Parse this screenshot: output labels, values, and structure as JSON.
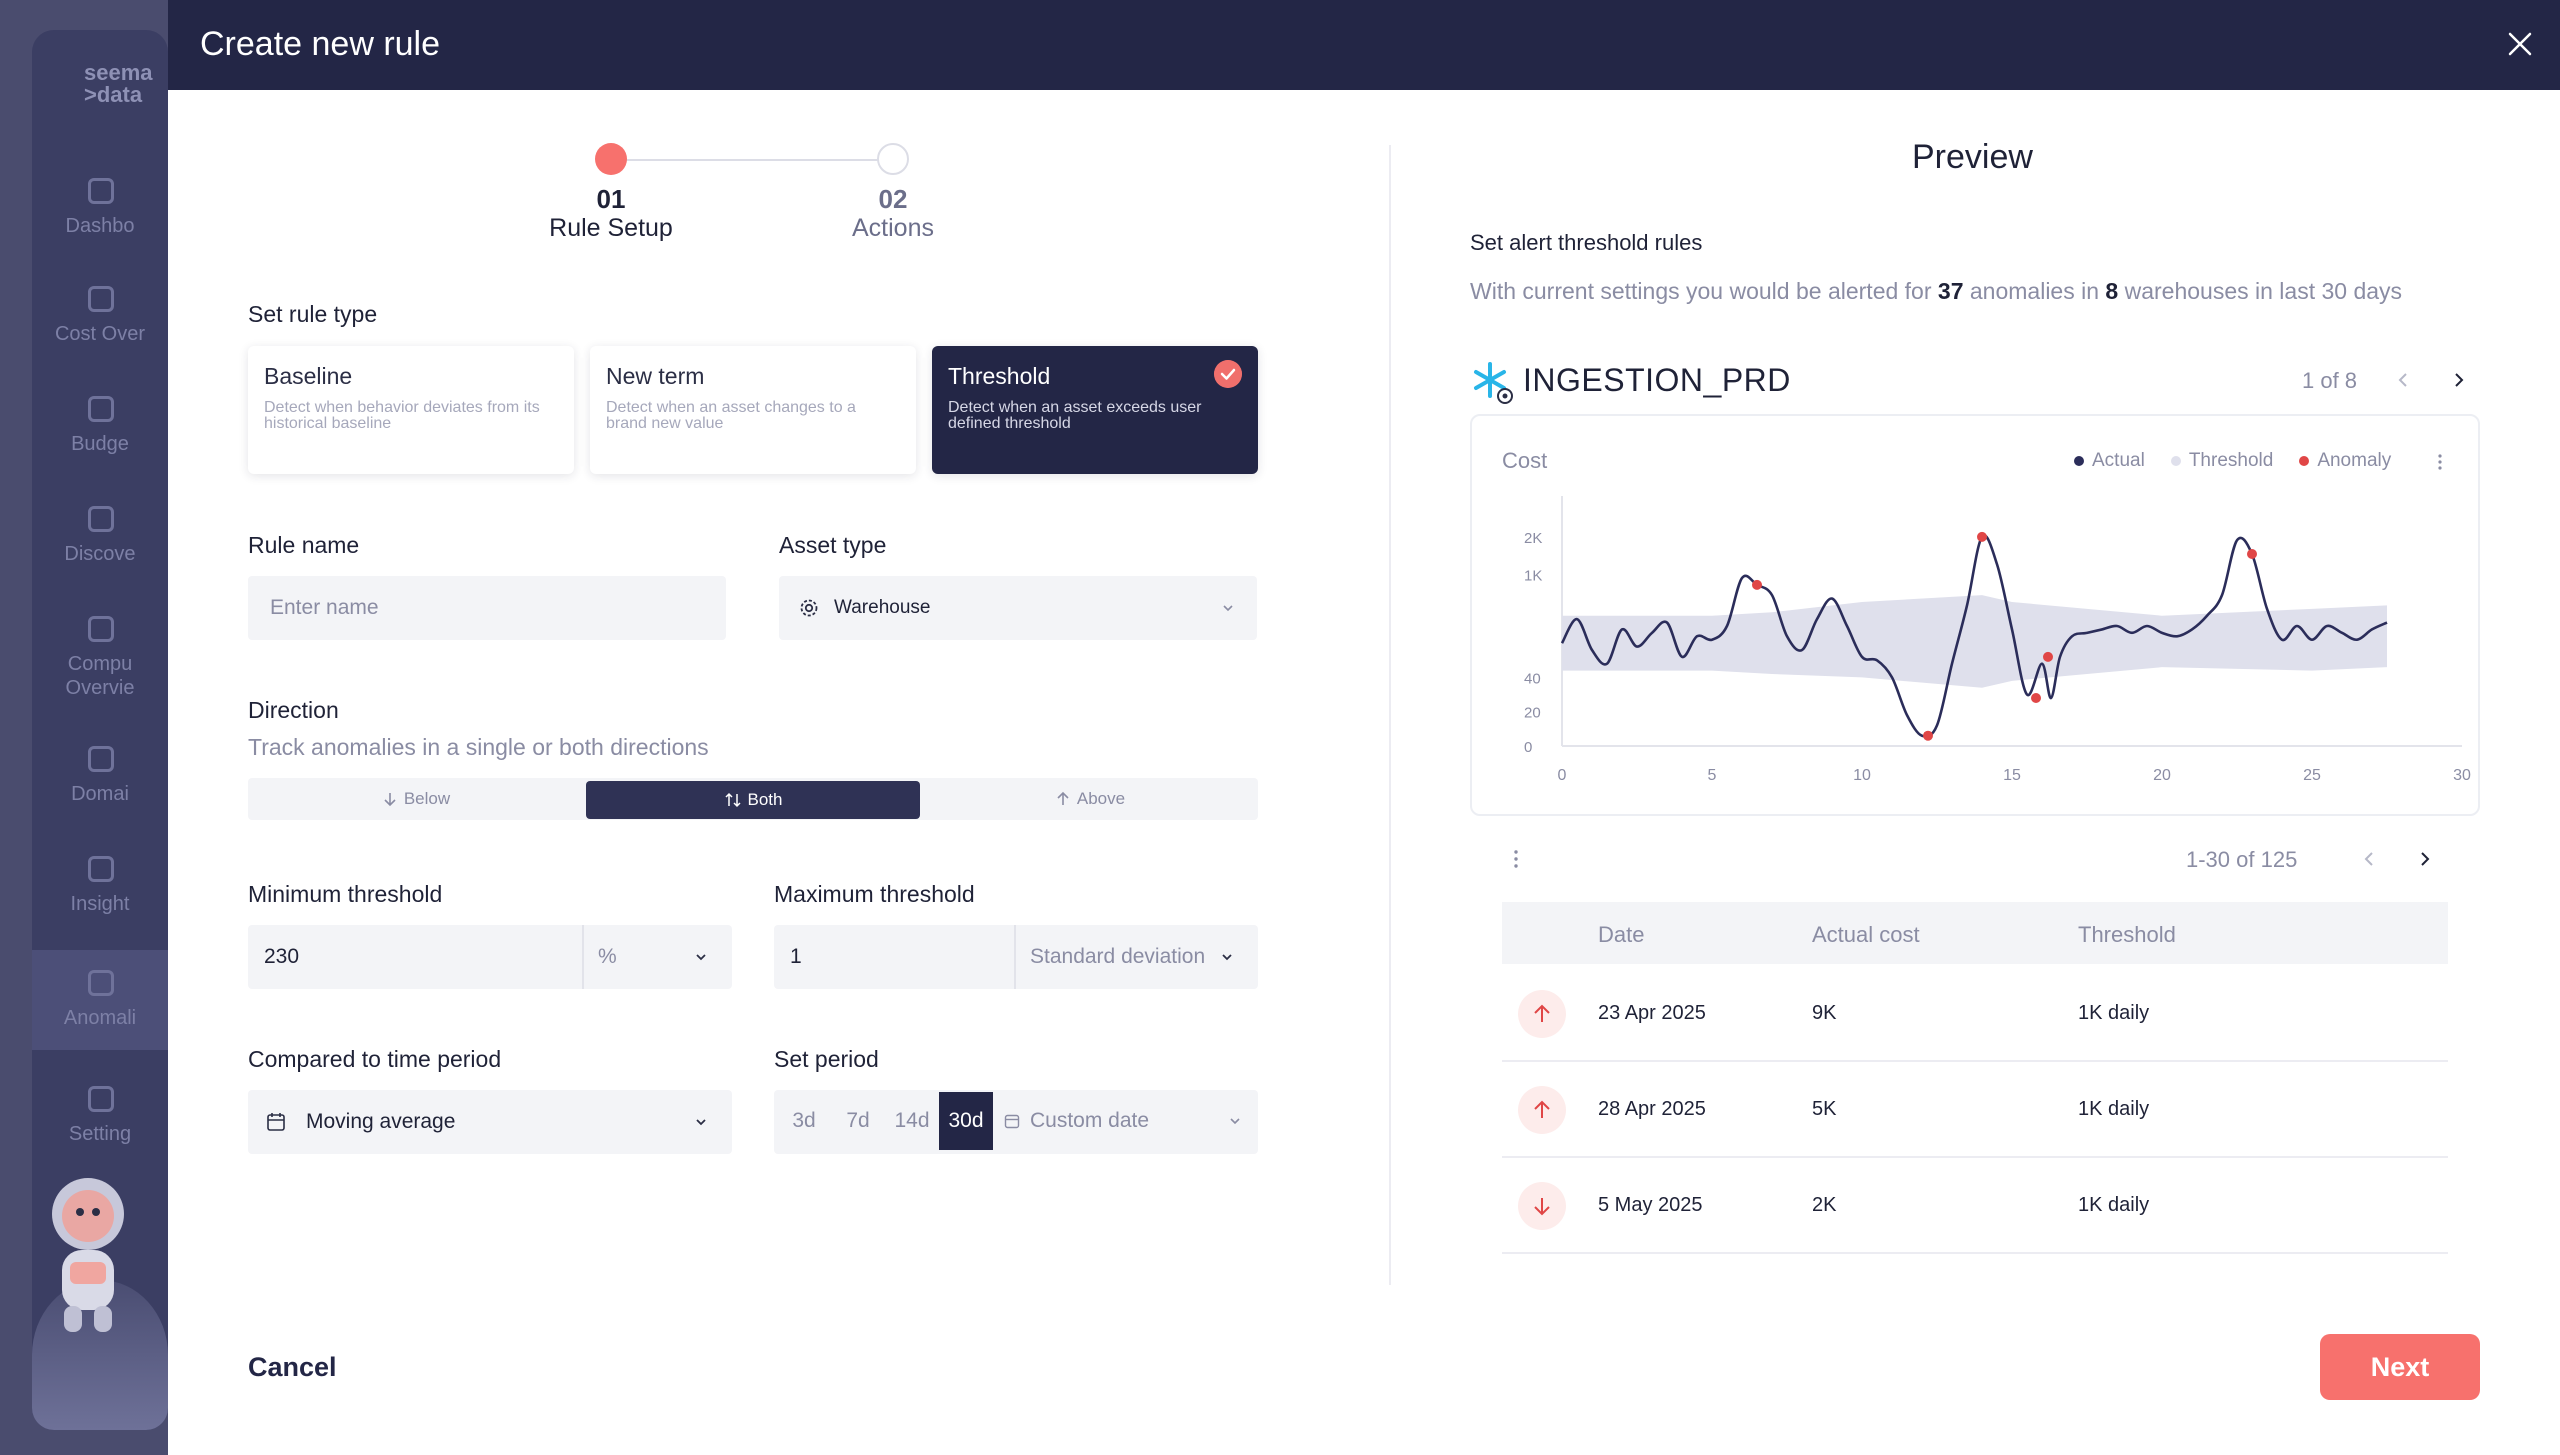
{
  "background_app": {
    "logo": [
      "seema",
      ">data"
    ],
    "nav": [
      "Dashbo",
      "Cost Over",
      "Budge",
      "Discove",
      "Compu Overvie",
      "Domai",
      "Insight",
      "Anomali",
      "Setting"
    ]
  },
  "modal": {
    "title": "Create new rule",
    "close_icon": "close-icon"
  },
  "stepper": {
    "steps": [
      {
        "number": "01",
        "label": "Rule Setup",
        "active": true
      },
      {
        "number": "02",
        "label": "Actions",
        "active": false
      }
    ]
  },
  "rule_type": {
    "label": "Set rule type",
    "options": [
      {
        "title": "Baseline",
        "description": "Detect when behavior deviates from its historical baseline",
        "selected": false
      },
      {
        "title": "New term",
        "description": "Detect when an asset changes to a brand new value",
        "selected": false
      },
      {
        "title": "Threshold",
        "description": "Detect when an asset exceeds user defined threshold",
        "selected": true
      }
    ]
  },
  "rule_name": {
    "label": "Rule name",
    "placeholder": "Enter name",
    "value": ""
  },
  "asset_type": {
    "label": "Asset type",
    "value": "Warehouse",
    "icon": "gear-icon"
  },
  "direction": {
    "label": "Direction",
    "subtitle": "Track anomalies in a single or both directions",
    "options": [
      "Below",
      "Both",
      "Above"
    ],
    "selected": "Both"
  },
  "min_threshold": {
    "label": "Minimum threshold",
    "value": "230",
    "unit": "%"
  },
  "max_threshold": {
    "label": "Maximum threshold",
    "value": "1",
    "unit": "Standard deviation"
  },
  "compared_period": {
    "label": "Compared to time period",
    "value": "Moving average",
    "icon": "calendar-icon"
  },
  "set_period": {
    "label": "Set period",
    "options": [
      "3d",
      "7d",
      "14d",
      "30d"
    ],
    "selected": "30d",
    "custom": "Custom date"
  },
  "footer": {
    "cancel": "Cancel",
    "next": "Next"
  },
  "preview": {
    "title": "Preview",
    "section": "Set alert threshold rules",
    "summary": {
      "prefix": "With current settings you would be alerted for",
      "anomalies": "37",
      "mid": "anomalies in",
      "warehouses": "8",
      "suffix": "warehouses in last 30 days"
    },
    "warehouse": {
      "name": "INGESTION_PRD",
      "icon": "snowflake-icon"
    },
    "warehouse_pager": "1 of 8",
    "table_pager": "1-30 of 125",
    "colors": {
      "actual": "#2b2d5a",
      "threshold": "#dfe0ec",
      "anomaly": "#e04646",
      "primary": "#232646",
      "accent": "#f7716d"
    }
  },
  "chart_data": {
    "type": "line",
    "ylabel": "Cost",
    "legend": [
      "Actual",
      "Threshold",
      "Anomaly"
    ],
    "legend_position": "top-right",
    "x_ticks": [
      "0",
      "5",
      "10",
      "15",
      "20",
      "25",
      "30"
    ],
    "y_ticks": [
      "0",
      "20",
      "40",
      "1K",
      "2K"
    ],
    "xlim": [
      0,
      30
    ],
    "grid": false,
    "series": [
      {
        "name": "Actual",
        "x": [
          0,
          0.5,
          1,
          1.5,
          2,
          2.5,
          3,
          3.5,
          4,
          4.5,
          5,
          5.5,
          6,
          6.5,
          7,
          7.5,
          8,
          8.5,
          9,
          9.5,
          10,
          10.5,
          11,
          11.5,
          12,
          12.5,
          13,
          13.5,
          14,
          14.5,
          15,
          15.5,
          16,
          16.3,
          16.6,
          17,
          17.5,
          18,
          18.5,
          19,
          19.5,
          20,
          20.5,
          21,
          21.5,
          22,
          22.5,
          23,
          23.5,
          24,
          24.5,
          25,
          25.5,
          26,
          26.5,
          27,
          27.5
        ],
        "y": [
          30,
          37,
          28,
          24,
          34,
          29,
          33,
          36,
          26,
          32,
          31,
          35,
          49,
          47,
          44,
          32,
          28,
          37,
          43,
          35,
          26,
          25,
          20,
          9,
          3,
          6,
          24,
          41,
          61,
          53,
          34,
          15,
          24,
          14,
          26,
          32,
          33,
          34,
          35,
          33,
          35,
          33,
          32,
          34,
          38,
          44,
          60,
          56,
          40,
          31,
          35,
          31,
          35,
          33,
          31,
          34,
          36
        ]
      },
      {
        "name": "Threshold upper",
        "x": [
          0,
          5,
          7,
          10,
          14,
          15,
          20,
          25,
          27.5
        ],
        "y": [
          38,
          38,
          39,
          42,
          44,
          42,
          38,
          40,
          41
        ]
      },
      {
        "name": "Threshold lower",
        "x": [
          0,
          5,
          7,
          10,
          14,
          15,
          20,
          25,
          27.5
        ],
        "y": [
          22,
          22,
          21,
          20,
          17,
          19,
          23,
          22,
          23
        ]
      }
    ],
    "anomalies": [
      {
        "x": 6.5,
        "y": 47
      },
      {
        "x": 12.2,
        "y": 3
      },
      {
        "x": 14,
        "y": 61
      },
      {
        "x": 15.8,
        "y": 14
      },
      {
        "x": 16.2,
        "y": 26
      },
      {
        "x": 23,
        "y": 56
      }
    ]
  },
  "table": {
    "columns": [
      "Date",
      "Actual cost",
      "Threshold"
    ],
    "rows": [
      {
        "direction": "up",
        "date": "23 Apr 2025",
        "actual": "9K",
        "threshold": "1K daily"
      },
      {
        "direction": "up",
        "date": "28 Apr 2025",
        "actual": "5K",
        "threshold": "1K daily"
      },
      {
        "direction": "down",
        "date": "5 May 2025",
        "actual": "2K",
        "threshold": "1K daily"
      }
    ]
  }
}
